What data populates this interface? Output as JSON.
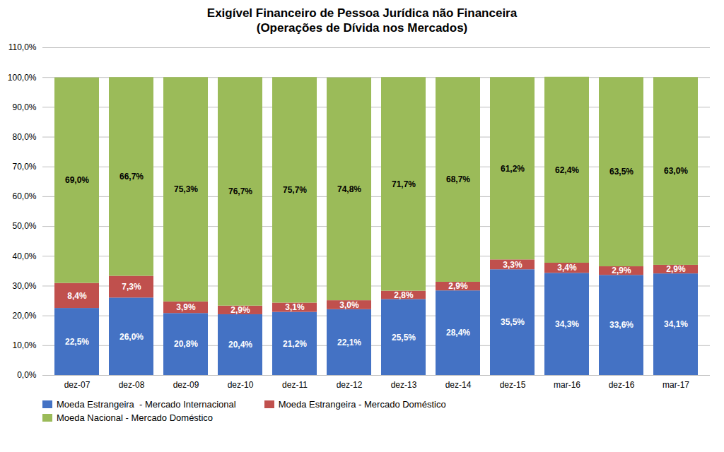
{
  "chart_data": {
    "type": "bar",
    "title": "Exigível Financeiro de Pessoa Jurídica não Financeira",
    "subtitle": "(Operações de Dívida nos Mercados)",
    "categories": [
      "dez-07",
      "dez-08",
      "dez-09",
      "dez-10",
      "dez-11",
      "dez-12",
      "dez-13",
      "dez-14",
      "dez-15",
      "mar-16",
      "dez-16",
      "mar-17"
    ],
    "series": [
      {
        "name": "Moeda Estrangeira  - Mercado Internacional",
        "color": "#4472C4",
        "values": [
          22.5,
          26.0,
          20.8,
          20.4,
          21.2,
          22.1,
          25.5,
          28.4,
          35.5,
          34.3,
          33.6,
          34.1
        ],
        "value_labels": [
          "22,5%",
          "26,0%",
          "20,8%",
          "20,4%",
          "21,2%",
          "22,1%",
          "25,5%",
          "28,4%",
          "35,5%",
          "34,3%",
          "33,6%",
          "34,1%"
        ]
      },
      {
        "name": "Moeda Estrangeira - Mercado Doméstico",
        "color": "#C0504D",
        "values": [
          8.4,
          7.3,
          3.9,
          2.9,
          3.1,
          3.0,
          2.8,
          2.9,
          3.3,
          3.4,
          2.9,
          2.9
        ],
        "value_labels": [
          "8,4%",
          "7,3%",
          "3,9%",
          "2,9%",
          "3,1%",
          "3,0%",
          "2,8%",
          "2,9%",
          "3,3%",
          "3,4%",
          "2,9%",
          "2,9%"
        ]
      },
      {
        "name": "Moeda Nacional - Mercado Doméstico",
        "color": "#9BBB59",
        "values": [
          69.0,
          66.7,
          75.3,
          76.7,
          75.7,
          74.8,
          71.7,
          68.7,
          61.2,
          62.4,
          63.5,
          63.0
        ],
        "value_labels": [
          "69,0%",
          "66,7%",
          "75,3%",
          "76,7%",
          "75,7%",
          "74,8%",
          "71,7%",
          "68,7%",
          "61,2%",
          "62,4%",
          "63,5%",
          "63,0%"
        ]
      }
    ],
    "ylim": [
      0,
      110
    ],
    "yticks": [
      {
        "value": 0,
        "label": "0,0%"
      },
      {
        "value": 10,
        "label": "10,0%"
      },
      {
        "value": 20,
        "label": "20,0%"
      },
      {
        "value": 30,
        "label": "30,0%"
      },
      {
        "value": 40,
        "label": "40,0%"
      },
      {
        "value": 50,
        "label": "50,0%"
      },
      {
        "value": 60,
        "label": "60,0%"
      },
      {
        "value": 70,
        "label": "70,0%"
      },
      {
        "value": 80,
        "label": "80,0%"
      },
      {
        "value": 90,
        "label": "90,0%"
      },
      {
        "value": 100,
        "label": "100,0%"
      },
      {
        "value": 110,
        "label": "110,0%"
      }
    ],
    "grid": true,
    "stacked": true,
    "data_labels": true,
    "legend": "bottom"
  }
}
